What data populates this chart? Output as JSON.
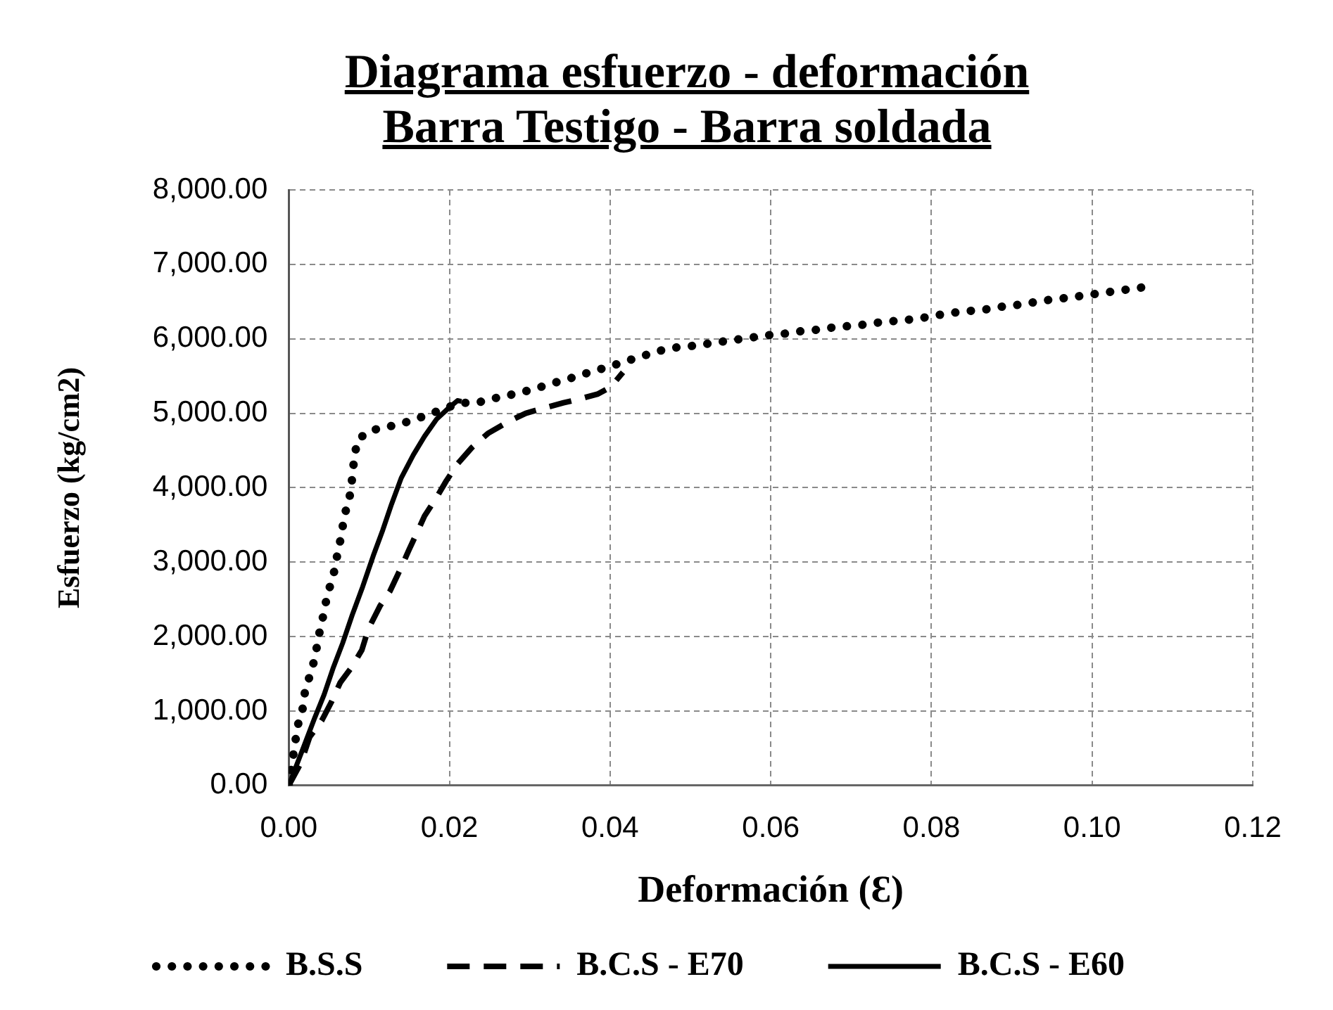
{
  "chart_data": {
    "type": "line",
    "title": "Diagrama esfuerzo - deformación\nBarra Testigo - Barra soldada",
    "xlabel": "Deformación (Ɛ)",
    "ylabel": "Esfuerzo (kg/cm2)",
    "xlim": [
      0,
      0.12
    ],
    "xticks": [
      {
        "value": 0,
        "label": "0.00"
      },
      {
        "value": 0.02,
        "label": "0.02"
      },
      {
        "value": 0.04,
        "label": "0.04"
      },
      {
        "value": 0.06,
        "label": "0.06"
      },
      {
        "value": 0.08,
        "label": "0.08"
      },
      {
        "value": 0.1,
        "label": "0.10"
      },
      {
        "value": 0.12,
        "label": "0.12"
      }
    ],
    "ylim": [
      0,
      8000
    ],
    "yticks": [
      {
        "value": 0,
        "label": "0.00"
      },
      {
        "value": 1000,
        "label": "1,000.00"
      },
      {
        "value": 2000,
        "label": "2,000.00"
      },
      {
        "value": 3000,
        "label": "3,000.00"
      },
      {
        "value": 4000,
        "label": "4,000.00"
      },
      {
        "value": 5000,
        "label": "5,000.00"
      },
      {
        "value": 6000,
        "label": "6,000.00"
      },
      {
        "value": 7000,
        "label": "7,000.00"
      },
      {
        "value": 8000,
        "label": "8,000.00"
      }
    ],
    "grid": true,
    "legend": "bottom",
    "marker": "none",
    "series": [
      {
        "name": "B.S.S",
        "color": "#000000",
        "line_style": "dotted",
        "x": [
          0,
          0.0009,
          0.0012,
          0.0018,
          0.002,
          0.0026,
          0.0032,
          0.0039,
          0.0044,
          0.0047,
          0.0053,
          0.0058,
          0.0061,
          0.0066,
          0.0068,
          0.0073,
          0.0078,
          0.0079,
          0.0082,
          0.0085,
          0.0099,
          0.0119,
          0.0137,
          0.0158,
          0.0178,
          0.0196,
          0.0213,
          0.0234,
          0.0251,
          0.0269,
          0.0289,
          0.0307,
          0.0327,
          0.0345,
          0.0365,
          0.0384,
          0.0403,
          0.042,
          0.0441,
          0.0458,
          0.0479,
          0.0499,
          0.0519,
          0.0538,
          0.0558,
          0.0578,
          0.0598,
          0.0618,
          0.0636,
          0.0656,
          0.0676,
          0.0696,
          0.0716,
          0.0735,
          0.0755,
          0.0775,
          0.0794,
          0.0814,
          0.0834,
          0.0853,
          0.0872,
          0.0892,
          0.0912,
          0.0932,
          0.0951,
          0.0969,
          0.0989,
          0.1009,
          0.1029,
          0.1049,
          0.1069
        ],
        "values": [
          0,
          650,
          840,
          1060,
          1250,
          1470,
          1690,
          2100,
          2330,
          2510,
          2740,
          2930,
          3150,
          3370,
          3560,
          3780,
          3970,
          4190,
          4410,
          4630,
          4760,
          4810,
          4850,
          4920,
          5000,
          5070,
          5140,
          5140,
          5190,
          5230,
          5280,
          5330,
          5400,
          5450,
          5520,
          5580,
          5640,
          5700,
          5770,
          5830,
          5880,
          5900,
          5930,
          5960,
          5990,
          6020,
          6050,
          6070,
          6100,
          6120,
          6150,
          6170,
          6190,
          6220,
          6240,
          6260,
          6290,
          6330,
          6360,
          6380,
          6400,
          6440,
          6460,
          6500,
          6530,
          6550,
          6580,
          6610,
          6640,
          6670,
          6700
        ]
      },
      {
        "name": "B.C.S - E70",
        "color": "#000000",
        "line_style": "dashed",
        "x": [
          0,
          0.0015,
          0.0026,
          0.0041,
          0.0053,
          0.0064,
          0.0079,
          0.0091,
          0.0099,
          0.0114,
          0.0126,
          0.014,
          0.0149,
          0.0161,
          0.0169,
          0.0184,
          0.0196,
          0.021,
          0.0228,
          0.0248,
          0.0272,
          0.0295,
          0.0318,
          0.0342,
          0.0365,
          0.0385,
          0.0397,
          0.0406,
          0.0416
        ],
        "values": [
          0,
          300,
          650,
          870,
          1120,
          1380,
          1600,
          1820,
          2100,
          2420,
          2610,
          2930,
          3150,
          3430,
          3620,
          3870,
          4090,
          4320,
          4540,
          4730,
          4880,
          5000,
          5070,
          5140,
          5200,
          5260,
          5330,
          5420,
          5550
        ]
      },
      {
        "name": "B.C.S - E60",
        "color": "#000000",
        "line_style": "solid",
        "x": [
          0,
          0.002,
          0.0032,
          0.0044,
          0.0055,
          0.0067,
          0.0079,
          0.0092,
          0.0105,
          0.0117,
          0.0128,
          0.014,
          0.0155,
          0.0169,
          0.0184,
          0.0199,
          0.021,
          0.0215
        ],
        "values": [
          0,
          560,
          900,
          1220,
          1570,
          1910,
          2290,
          2670,
          3080,
          3430,
          3780,
          4130,
          4440,
          4690,
          4920,
          5070,
          5170,
          5160
        ]
      }
    ]
  }
}
